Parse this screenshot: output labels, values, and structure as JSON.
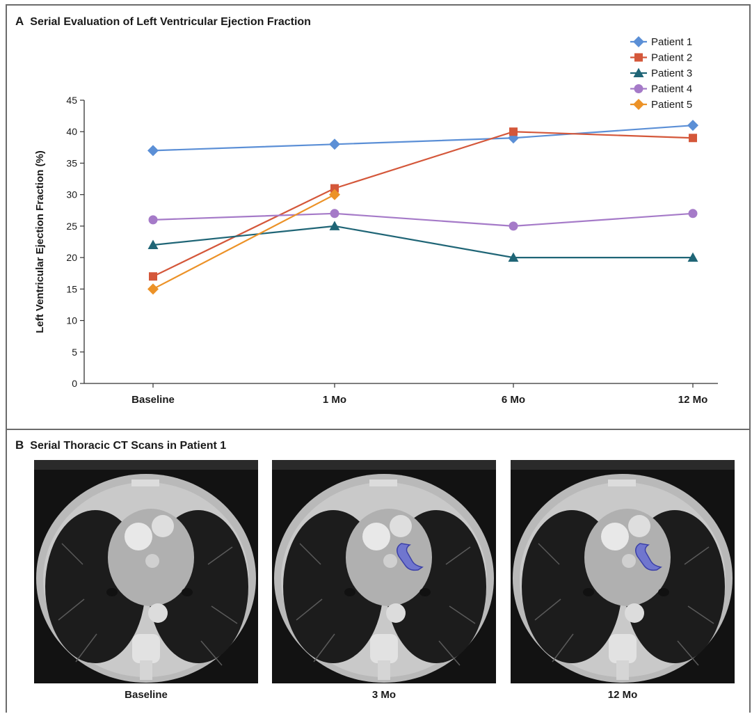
{
  "panel_a": {
    "letter": "A",
    "title": "Serial Evaluation of Left Ventricular Ejection Fraction"
  },
  "panel_b": {
    "letter": "B",
    "title": "Serial Thoracic CT Scans in Patient 1",
    "scans": [
      {
        "label": "Baseline",
        "highlight": false
      },
      {
        "label": "3 Mo",
        "highlight": true
      },
      {
        "label": "12 Mo",
        "highlight": true
      }
    ],
    "highlight_color": "#5b63d8"
  },
  "chart_data": {
    "type": "line",
    "title": "Serial Evaluation of Left Ventricular Ejection Fraction",
    "xlabel": "",
    "ylabel": "Left Ventricular Ejection Fraction (%)",
    "categories": [
      "Baseline",
      "1 Mo",
      "6 Mo",
      "12 Mo"
    ],
    "ylim": [
      0,
      45
    ],
    "yticks": [
      0,
      5,
      10,
      15,
      20,
      25,
      30,
      35,
      40,
      45
    ],
    "grid": false,
    "legend_position": "top-right",
    "series": [
      {
        "name": "Patient 1",
        "marker": "diamond",
        "color": "#5b8fd6",
        "values": [
          37,
          38,
          39,
          41
        ]
      },
      {
        "name": "Patient 2",
        "marker": "square",
        "color": "#d4573a",
        "values": [
          17,
          31,
          40,
          39
        ]
      },
      {
        "name": "Patient 3",
        "marker": "triangle",
        "color": "#1f6576",
        "values": [
          22,
          25,
          20,
          20
        ]
      },
      {
        "name": "Patient 4",
        "marker": "circle",
        "color": "#a57ac8",
        "values": [
          26,
          27,
          25,
          27
        ]
      },
      {
        "name": "Patient 5",
        "marker": "diamond",
        "color": "#ec9227",
        "values": [
          15,
          30,
          null,
          null
        ]
      }
    ]
  }
}
